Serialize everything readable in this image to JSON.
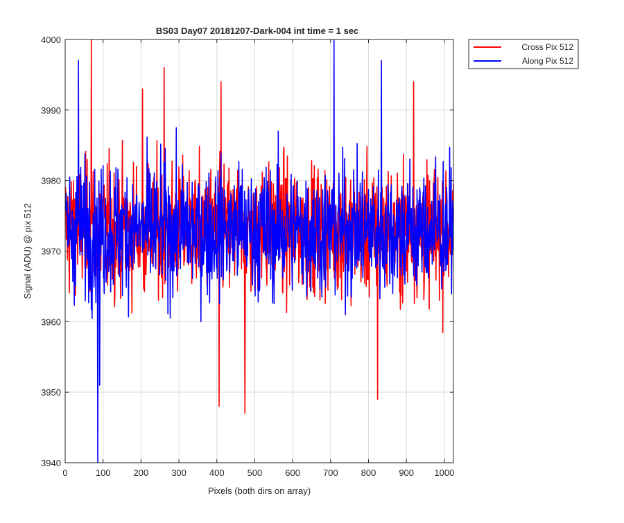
{
  "chart_data": {
    "type": "line",
    "title": "BS03 Day07 20181207-Dark-004 int time = 1 sec",
    "xlabel": "Pixels (both dirs on array)",
    "ylabel": "Signal (ADU) @ pix 512",
    "xlim": [
      0,
      1024
    ],
    "ylim": [
      3940,
      4000
    ],
    "xticks": [
      0,
      100,
      200,
      300,
      400,
      500,
      600,
      700,
      800,
      900,
      1000
    ],
    "yticks": [
      3940,
      3950,
      3960,
      3970,
      3980,
      3990,
      4000
    ],
    "grid": true,
    "legend_position": "outside-top-right",
    "series": [
      {
        "name": "Cross Pix 512",
        "color": "#ff0000",
        "mean": 3973,
        "range_typical": [
          3958,
          3990
        ],
        "notable_points": [
          {
            "x": 68,
            "y": 4000
          },
          {
            "x": 203,
            "y": 3993
          },
          {
            "x": 260,
            "y": 3996
          },
          {
            "x": 405,
            "y": 3948
          },
          {
            "x": 410,
            "y": 3994
          },
          {
            "x": 473,
            "y": 3947
          },
          {
            "x": 823,
            "y": 3949
          },
          {
            "x": 918,
            "y": 3994
          }
        ]
      },
      {
        "name": "Along Pix 512",
        "color": "#0000ff",
        "mean": 3973,
        "range_typical": [
          3960,
          3988
        ],
        "notable_points": [
          {
            "x": 34,
            "y": 3997
          },
          {
            "x": 85,
            "y": 3940
          },
          {
            "x": 90,
            "y": 3951
          },
          {
            "x": 708,
            "y": 4000
          },
          {
            "x": 833,
            "y": 3997
          }
        ]
      }
    ]
  }
}
